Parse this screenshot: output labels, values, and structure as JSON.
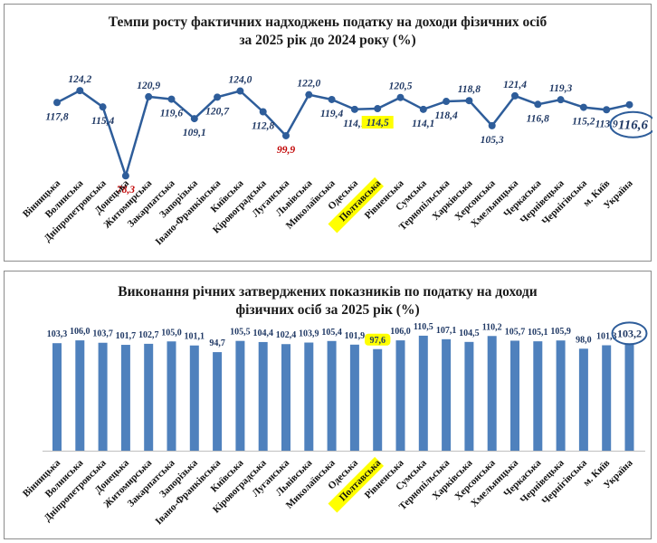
{
  "chart_data": [
    {
      "type": "line",
      "title_line1": "Темпи росту фактичних надходжень податку на доходи фізичних осіб",
      "title_line2": "за 2025 рік до 2024 року  (%)",
      "categories": [
        "Вінницька",
        "Волинська",
        "Дніпропетровська",
        "Донецька",
        "Житомирська",
        "Закарпатська",
        "Запорізька",
        "Івано-Франківська",
        "Київська",
        "Кіровоградська",
        "Луганська",
        "Львівська",
        "Миколаївська",
        "Одеська",
        "Полтавська",
        "Рівненська",
        "Сумська",
        "Тернопільська",
        "Харківська",
        "Херсонська",
        "Хмельницька",
        "Черкаська",
        "Чернівецька",
        "Чернігівська",
        "м. Київ",
        "Україна"
      ],
      "labels": [
        "117,8",
        "124,2",
        "115,4",
        "78,3",
        "120,9",
        "119,6",
        "109,1",
        "120,7",
        "124,0",
        "112,8",
        "99,9",
        "122,0",
        "119,4",
        "114,1",
        "114,5",
        "120,5",
        "114,1",
        "118,4",
        "118,8",
        "105,3",
        "121,4",
        "116,8",
        "119,3",
        "115,2",
        "113,9",
        "116,6"
      ],
      "values": [
        117.8,
        124.2,
        115.4,
        78.3,
        120.9,
        119.6,
        109.1,
        120.7,
        124.0,
        112.8,
        99.9,
        122.0,
        119.4,
        114.1,
        114.5,
        120.5,
        114.1,
        118.4,
        118.8,
        105.3,
        121.4,
        116.8,
        119.3,
        115.2,
        113.9,
        116.6
      ],
      "below_100_color": "#c00000",
      "highlight_category": "Полтавська",
      "highlight_color": "#ffff00",
      "total_category": "Україна",
      "line_color": "#2e5d9a",
      "ylim": [
        70,
        130
      ],
      "grid": false
    },
    {
      "type": "bar",
      "title_line1": "Виконання річних затверджених показників по податку на доходи",
      "title_line2": "фізичних осіб за 2025 рік (%)",
      "categories": [
        "Вінницька",
        "Волинська",
        "Дніпропетровська",
        "Донецька",
        "Житомирська",
        "Закарпатська",
        "Запорізька",
        "Івано-Франківська",
        "Київська",
        "Кіровоградська",
        "Луганська",
        "Львівська",
        "Миколаївська",
        "Одеська",
        "Полтавська",
        "Рівненська",
        "Сумська",
        "Тернопільська",
        "Харківська",
        "Херсонська",
        "Хмельницька",
        "Черкаська",
        "Чернівецька",
        "Чернігівська",
        "м. Київ",
        "Україна"
      ],
      "labels": [
        "103,3",
        "106,0",
        "103,7",
        "101,7",
        "102,7",
        "105,0",
        "101,1",
        "94,7",
        "105,5",
        "104,4",
        "102,4",
        "103,9",
        "105,4",
        "101,9",
        "97,6",
        "106,0",
        "110,5",
        "107,1",
        "104,5",
        "110,2",
        "105,7",
        "105,1",
        "105,9",
        "98,0",
        "101,3",
        "103,2"
      ],
      "values": [
        103.3,
        106.0,
        103.7,
        101.7,
        102.7,
        105.0,
        101.1,
        94.7,
        105.5,
        104.4,
        102.4,
        103.9,
        105.4,
        101.9,
        97.6,
        106.0,
        110.5,
        107.1,
        104.5,
        110.2,
        105.7,
        105.1,
        105.9,
        98.0,
        101.3,
        103.2
      ],
      "highlight_category": "Полтавська",
      "highlight_color": "#ffff00",
      "total_category": "Україна",
      "bar_color": "#4f81bd",
      "ylim": [
        0,
        115
      ],
      "grid": false
    }
  ]
}
